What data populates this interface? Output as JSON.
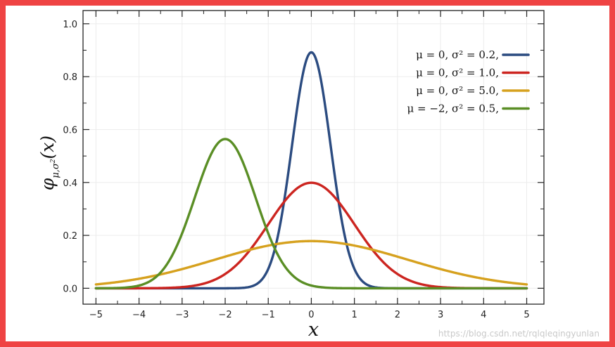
{
  "chart_data": {
    "type": "line",
    "title": "",
    "xlabel": "x",
    "ylabel": "φ_{μ,σ²}(x)",
    "xlim": [
      -5.3,
      5.4
    ],
    "ylim": [
      -0.06,
      1.05
    ],
    "x_ticks": [
      -5,
      -4,
      -3,
      -2,
      -1,
      0,
      1,
      2,
      3,
      4,
      5
    ],
    "x_tick_labels": [
      "−5",
      "−4",
      "−3",
      "−2",
      "−1",
      "0",
      "1",
      "2",
      "3",
      "4",
      "5"
    ],
    "y_ticks": [
      0.0,
      0.2,
      0.4,
      0.6,
      0.8,
      1.0
    ],
    "y_tick_labels": [
      "0.0",
      "0.2",
      "0.4",
      "0.6",
      "0.8",
      "1.0"
    ],
    "grid": true,
    "legend_position": "top-right",
    "series": [
      {
        "name": "μ = 0,   σ² = 0.2,",
        "mu": 0,
        "sigma2": 0.2,
        "color": "#2b4b80",
        "peak": 0.89
      },
      {
        "name": "μ = 0,   σ² = 1.0,",
        "mu": 0,
        "sigma2": 1.0,
        "color": "#cc2520",
        "peak": 0.4
      },
      {
        "name": "μ = 0,   σ² = 5.0,",
        "mu": 0,
        "sigma2": 5.0,
        "color": "#d6a11e",
        "peak": 0.18
      },
      {
        "name": "μ = −2,  σ² = 0.5,",
        "mu": -2,
        "sigma2": 0.5,
        "color": "#5a8e25",
        "peak": 0.56
      }
    ]
  },
  "watermark": "https://blog.csdn.net/rqlqleqingyunlan"
}
